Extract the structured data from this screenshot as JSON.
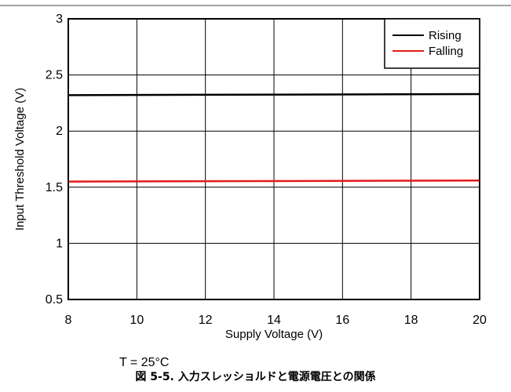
{
  "chart_data": {
    "type": "line",
    "xlabel": "Supply Voltage (V)",
    "ylabel": "Input Threshold Voltage (V)",
    "xlim": [
      8,
      20
    ],
    "ylim": [
      0.5,
      3
    ],
    "x_ticks": [
      8,
      10,
      12,
      14,
      16,
      18,
      20
    ],
    "y_ticks": [
      0.5,
      1,
      1.5,
      2,
      2.5,
      3
    ],
    "y_tick_labels": [
      "0.5",
      "1",
      "1.5",
      "2",
      "2.5",
      "3"
    ],
    "grid": true,
    "legend_position": "top-right",
    "series": [
      {
        "name": "Rising",
        "color": "#000000",
        "x": [
          8,
          20
        ],
        "y": [
          2.32,
          2.33
        ]
      },
      {
        "name": "Falling",
        "color": "#e31a1c",
        "x": [
          8,
          20
        ],
        "y": [
          1.55,
          1.56
        ]
      }
    ],
    "annotation": "T = 25°C"
  },
  "caption": "図 5-5. 入力スレッショルドと電源電圧との関係"
}
